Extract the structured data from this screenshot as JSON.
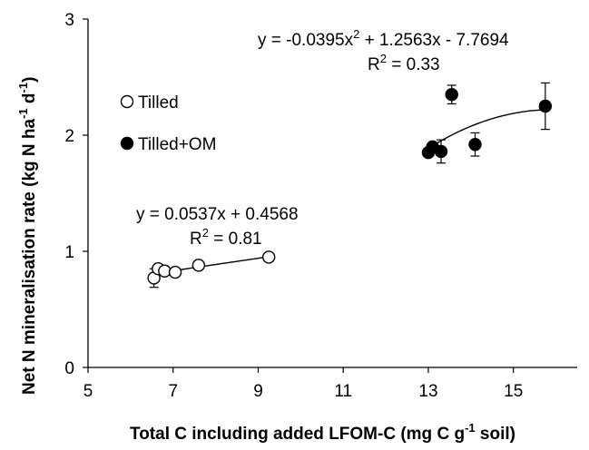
{
  "chart_data": {
    "type": "scatter",
    "xlabel": "Total C including added LFOM-C (mg C g",
    "xlabel_sup": "-1",
    "xlabel_tail": " soil)",
    "ylabel": "Net N mineralisation rate (kg N ha",
    "ylabel_sup1": "-1",
    "ylabel_mid": " d",
    "ylabel_sup2": "-1",
    "ylabel_tail": ")",
    "xlim": [
      5,
      16.5
    ],
    "ylim": [
      0,
      3
    ],
    "xticks": [
      5,
      7,
      9,
      11,
      13,
      15
    ],
    "yticks": [
      0,
      1,
      2,
      3
    ],
    "xtick_labels": [
      "5",
      "7",
      "9",
      "11",
      "13",
      "15"
    ],
    "ytick_labels": [
      "0",
      "1",
      "2",
      "3"
    ],
    "grid": false,
    "legend_position": "left",
    "series": [
      {
        "name": "Tilled",
        "marker": "open-circle",
        "color": "#000000",
        "points": [
          {
            "x": 6.55,
            "y": 0.77,
            "err": 0.08
          },
          {
            "x": 6.65,
            "y": 0.85,
            "err": 0.02
          },
          {
            "x": 6.8,
            "y": 0.83,
            "err": 0.02
          },
          {
            "x": 7.05,
            "y": 0.82,
            "err": 0.03
          },
          {
            "x": 7.6,
            "y": 0.88,
            "err": 0.03
          },
          {
            "x": 9.25,
            "y": 0.95,
            "err": 0.03
          }
        ],
        "trendline": {
          "kind": "linear",
          "a": 0.0537,
          "b": 0.4568,
          "x_range": [
            6.55,
            9.25
          ]
        },
        "equation": {
          "text": "y = 0.0537x + 0.4568",
          "r2_prefix": "R",
          "r2_sup": "2",
          "r2_value": " = 0.81"
        }
      },
      {
        "name": "Tilled+OM",
        "marker": "filled-circle",
        "color": "#000000",
        "points": [
          {
            "x": 13.0,
            "y": 1.85,
            "err": 0.0
          },
          {
            "x": 13.1,
            "y": 1.9,
            "err": 0.0
          },
          {
            "x": 13.3,
            "y": 1.86,
            "err": 0.1
          },
          {
            "x": 13.55,
            "y": 2.35,
            "err": 0.08
          },
          {
            "x": 14.1,
            "y": 1.92,
            "err": 0.1
          },
          {
            "x": 15.75,
            "y": 2.25,
            "err": 0.2
          }
        ],
        "trendline": {
          "kind": "quadratic",
          "a": -0.0395,
          "b": 1.2563,
          "c": -7.7694,
          "x_range": [
            13.0,
            15.75
          ]
        },
        "equation": {
          "text": "y = -0.0395x",
          "text_sup": "2",
          "text_tail": " + 1.2563x - 7.7694",
          "r2_prefix": "R",
          "r2_sup": "2",
          "r2_value": " = 0.33"
        }
      }
    ]
  }
}
